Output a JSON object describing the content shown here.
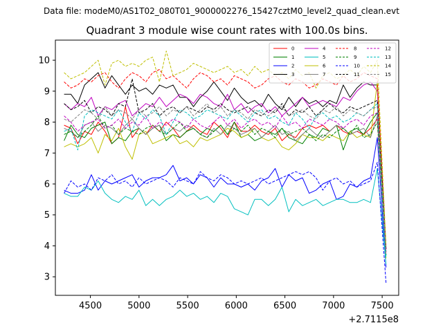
{
  "suptitle": "Data file: modeM0/AS1T02_080T01_9000002276_15427cztM0_level2_quad_clean.evt",
  "chart_data": {
    "type": "line",
    "title": "Quadrant 3 module wise count rates with 100.0s bins.",
    "xlabel": "",
    "ylabel": "",
    "offset_label": "+2.7115e8",
    "xlim": [
      4140,
      7670
    ],
    "ylim": [
      2.4,
      10.65
    ],
    "xticks": [
      4500,
      5000,
      5500,
      6000,
      6500,
      7000,
      7500
    ],
    "yticks": [
      3,
      4,
      5,
      6,
      7,
      8,
      9,
      10
    ],
    "legend_position": "top-right",
    "x": [
      4230,
      4300,
      4370,
      4440,
      4510,
      4580,
      4650,
      4720,
      4790,
      4860,
      4930,
      5000,
      5070,
      5140,
      5210,
      5280,
      5350,
      5420,
      5490,
      5560,
      5630,
      5700,
      5770,
      5840,
      5910,
      5980,
      6050,
      6120,
      6190,
      6260,
      6330,
      6400,
      6470,
      6540,
      6610,
      6680,
      6750,
      6820,
      6890,
      6960,
      7030,
      7100,
      7170,
      7240,
      7310,
      7380,
      7450,
      7540
    ],
    "series": [
      {
        "name": "0",
        "color": "#ff0000",
        "dashed": false,
        "values": [
          7.9,
          7.8,
          7.3,
          7.7,
          7.6,
          8.0,
          7.7,
          7.3,
          7.5,
          8.5,
          7.5,
          7.8,
          7.6,
          7.9,
          7.7,
          8.0,
          7.8,
          7.5,
          7.7,
          7.9,
          7.7,
          7.6,
          8.0,
          7.8,
          7.5,
          8.0,
          7.7,
          7.7,
          7.9,
          7.7,
          7.6,
          7.8,
          7.4,
          7.6,
          7.5,
          7.8,
          7.9,
          7.8,
          7.9,
          7.7,
          7.9,
          7.7,
          7.6,
          7.7,
          7.6,
          7.8,
          8.1,
          3.8
        ]
      },
      {
        "name": "1",
        "color": "#008000",
        "dashed": false,
        "values": [
          7.4,
          7.9,
          7.6,
          7.5,
          7.8,
          7.9,
          8.0,
          7.3,
          7.5,
          7.4,
          7.7,
          7.8,
          7.6,
          7.8,
          7.9,
          7.4,
          7.6,
          7.5,
          7.7,
          7.8,
          7.6,
          7.8,
          7.7,
          7.9,
          7.6,
          8.0,
          7.5,
          7.6,
          7.4,
          7.5,
          7.7,
          7.6,
          7.8,
          7.5,
          7.4,
          7.3,
          7.6,
          7.5,
          7.8,
          7.7,
          7.9,
          7.1,
          7.7,
          7.8,
          7.6,
          8.0,
          8.3,
          3.7
        ]
      },
      {
        "name": "2",
        "color": "#0000ff",
        "dashed": false,
        "values": [
          5.8,
          5.7,
          5.7,
          5.8,
          6.3,
          5.8,
          6.1,
          6.0,
          6.1,
          6.2,
          6.3,
          5.9,
          6.1,
          6.2,
          6.2,
          6.3,
          6.6,
          6.1,
          6.2,
          6.0,
          6.3,
          6.2,
          5.9,
          6.2,
          6.0,
          6.0,
          5.9,
          6.0,
          5.8,
          6.1,
          6.2,
          6.5,
          5.9,
          6.3,
          6.1,
          6.2,
          5.7,
          5.8,
          6.0,
          6.1,
          5.5,
          5.6,
          6.0,
          5.9,
          6.1,
          6.2,
          7.5,
          3.3
        ]
      },
      {
        "name": "3",
        "color": "#000000",
        "dashed": false,
        "values": [
          8.9,
          8.9,
          8.6,
          9.2,
          9.4,
          9.6,
          9.1,
          9.5,
          9.2,
          8.9,
          9.2,
          9.0,
          9.1,
          8.9,
          9.2,
          9.1,
          9.2,
          8.8,
          8.8,
          8.5,
          8.8,
          9.0,
          9.3,
          9.0,
          8.7,
          9.1,
          8.8,
          8.6,
          8.7,
          8.5,
          8.9,
          8.6,
          8.4,
          8.8,
          8.5,
          8.8,
          8.6,
          8.7,
          8.5,
          8.7,
          8.6,
          9.2,
          8.8,
          9.1,
          9.3,
          9.2,
          9.2,
          3.9
        ]
      },
      {
        "name": "4",
        "color": "#bf00bf",
        "dashed": false,
        "values": [
          8.6,
          8.4,
          8.6,
          8.5,
          8.8,
          8.2,
          8.5,
          8.4,
          8.6,
          8.7,
          8.2,
          8.4,
          8.6,
          8.5,
          8.8,
          8.5,
          8.7,
          8.9,
          8.8,
          8.6,
          8.9,
          8.8,
          8.6,
          8.5,
          8.9,
          8.4,
          8.6,
          8.3,
          8.5,
          8.6,
          8.3,
          8.5,
          8.2,
          8.4,
          8.6,
          8.8,
          8.5,
          8.6,
          8.7,
          8.6,
          8.5,
          8.8,
          8.7,
          9.0,
          9.2,
          9.3,
          9.0,
          3.8
        ]
      },
      {
        "name": "5",
        "color": "#00bfbf",
        "dashed": false,
        "values": [
          5.7,
          5.6,
          5.6,
          5.9,
          5.8,
          6.1,
          5.7,
          5.5,
          5.4,
          5.6,
          5.5,
          5.8,
          5.3,
          5.5,
          5.3,
          5.5,
          5.6,
          5.8,
          5.6,
          5.7,
          5.5,
          5.6,
          5.4,
          5.7,
          5.6,
          5.2,
          5.1,
          5.0,
          5.5,
          5.5,
          5.3,
          5.5,
          5.9,
          5.1,
          5.5,
          5.3,
          5.4,
          5.5,
          5.3,
          5.4,
          5.5,
          5.5,
          5.4,
          5.4,
          5.5,
          5.4,
          6.5,
          3.4
        ]
      },
      {
        "name": "6",
        "color": "#bfbf00",
        "dashed": false,
        "values": [
          7.2,
          7.3,
          7.2,
          7.3,
          7.5,
          7.0,
          7.6,
          7.4,
          7.8,
          7.2,
          6.8,
          7.6,
          7.7,
          7.3,
          7.4,
          7.5,
          7.6,
          7.3,
          7.4,
          7.2,
          7.5,
          7.4,
          7.5,
          7.6,
          7.8,
          7.7,
          7.5,
          7.6,
          7.8,
          7.5,
          7.4,
          7.5,
          7.2,
          7.1,
          7.3,
          7.6,
          7.5,
          7.5,
          7.4,
          7.6,
          7.5,
          7.4,
          7.7,
          7.5,
          7.6,
          7.5,
          9.3,
          3.6
        ]
      },
      {
        "name": "7",
        "color": "#808080",
        "dashed": false,
        "values": [
          7.8,
          7.7,
          7.5,
          7.9,
          8.0,
          7.7,
          7.9,
          7.8,
          7.6,
          7.9,
          8.1,
          7.8,
          7.6,
          7.8,
          7.9,
          7.6,
          7.8,
          7.7,
          7.9,
          7.8,
          7.6,
          7.5,
          7.8,
          7.6,
          7.9,
          7.8,
          7.6,
          7.7,
          7.8,
          7.5,
          7.7,
          7.9,
          7.6,
          7.7,
          7.4,
          7.6,
          7.8,
          7.6,
          7.5,
          7.7,
          7.9,
          7.8,
          7.6,
          7.7,
          7.8,
          7.5,
          8.2,
          3.7
        ]
      },
      {
        "name": "8",
        "color": "#ff0000",
        "dashed": true,
        "values": [
          9.3,
          9.1,
          9.2,
          9.4,
          9.3,
          9.5,
          9.6,
          9.3,
          9.1,
          9.4,
          9.6,
          9.5,
          9.3,
          9.6,
          9.7,
          9.4,
          9.5,
          9.3,
          9.1,
          9.4,
          9.6,
          9.5,
          9.3,
          9.4,
          9.2,
          9.5,
          9.4,
          9.3,
          9.1,
          9.2,
          9.4,
          9.5,
          9.3,
          9.2,
          9.4,
          9.3,
          9.1,
          9.2,
          9.4,
          9.3,
          9.2,
          9.5,
          9.3,
          9.4,
          9.6,
          9.5,
          9.4,
          3.9
        ]
      },
      {
        "name": "9",
        "color": "#008000",
        "dashed": true,
        "values": [
          7.6,
          7.7,
          7.5,
          7.7,
          7.9,
          8.2,
          7.8,
          7.9,
          7.6,
          7.8,
          7.7,
          7.6,
          7.8,
          7.9,
          7.7,
          7.6,
          7.8,
          8.0,
          7.7,
          7.8,
          7.6,
          7.5,
          7.7,
          7.9,
          7.6,
          7.8,
          7.7,
          7.9,
          7.6,
          7.8,
          7.7,
          7.5,
          7.8,
          7.6,
          7.7,
          7.8,
          7.6,
          7.4,
          7.6,
          7.5,
          7.7,
          7.8,
          7.6,
          7.9,
          7.5,
          7.6,
          8.0,
          3.7
        ]
      },
      {
        "name": "10",
        "color": "#0000ff",
        "dashed": true,
        "values": [
          5.7,
          6.1,
          5.9,
          6.0,
          5.8,
          6.2,
          6.1,
          6.3,
          6.0,
          6.1,
          5.9,
          6.2,
          6.0,
          6.1,
          6.2,
          6.1,
          5.9,
          6.2,
          6.1,
          6.0,
          6.4,
          6.2,
          6.1,
          6.3,
          6.2,
          6.0,
          6.1,
          6.0,
          6.1,
          6.2,
          6.0,
          6.1,
          6.2,
          6.3,
          6.4,
          6.3,
          6.4,
          6.2,
          5.8,
          6.1,
          6.2,
          6.0,
          6.1,
          5.9,
          6.0,
          6.1,
          6.7,
          2.8
        ]
      },
      {
        "name": "11",
        "color": "#000000",
        "dashed": true,
        "values": [
          8.6,
          8.4,
          8.5,
          8.7,
          8.3,
          8.5,
          8.4,
          8.2,
          8.6,
          8.5,
          9.4,
          8.3,
          8.4,
          8.6,
          8.2,
          8.4,
          8.5,
          8.3,
          8.5,
          8.4,
          8.3,
          8.5,
          8.4,
          8.6,
          8.4,
          8.3,
          8.4,
          8.5,
          8.3,
          8.2,
          8.4,
          8.3,
          8.6,
          8.2,
          8.4,
          8.3,
          8.5,
          8.2,
          8.4,
          8.6,
          8.4,
          8.3,
          8.5,
          8.4,
          8.5,
          8.6,
          8.7,
          3.9
        ]
      },
      {
        "name": "12",
        "color": "#bf00bf",
        "dashed": true,
        "values": [
          8.2,
          8.0,
          7.7,
          7.9,
          8.0,
          8.1,
          7.8,
          7.9,
          8.1,
          7.8,
          8.0,
          7.9,
          8.2,
          7.8,
          8.0,
          7.9,
          8.1,
          8.0,
          7.8,
          8.1,
          7.9,
          7.8,
          8.0,
          8.2,
          7.9,
          8.1,
          7.8,
          8.0,
          8.1,
          7.9,
          8.0,
          7.8,
          8.2,
          7.9,
          8.0,
          7.8,
          8.1,
          8.0,
          7.9,
          8.1,
          8.0,
          7.8,
          8.0,
          8.1,
          7.9,
          8.2,
          8.3,
          3.8
        ]
      },
      {
        "name": "13",
        "color": "#00bfbf",
        "dashed": true,
        "values": [
          7.7,
          7.8,
          7.1,
          8.2,
          8.4,
          8.3,
          8.2,
          8.1,
          8.4,
          8.0,
          7.7,
          8.3,
          8.1,
          8.4,
          8.2,
          7.6,
          8.0,
          8.4,
          8.3,
          8.1,
          8.2,
          8.4,
          8.3,
          8.2,
          8.1,
          8.4,
          8.2,
          8.0,
          8.3,
          8.4,
          8.1,
          8.2,
          8.0,
          7.9,
          8.3,
          8.1,
          7.8,
          8.2,
          8.3,
          8.1,
          8.2,
          8.0,
          8.1,
          8.3,
          8.2,
          8.4,
          8.6,
          3.6
        ]
      },
      {
        "name": "14",
        "color": "#bfbf00",
        "dashed": true,
        "values": [
          9.6,
          9.4,
          9.5,
          9.6,
          9.8,
          10.0,
          9.2,
          9.9,
          10.0,
          9.8,
          9.9,
          9.8,
          10.0,
          10.1,
          9.3,
          10.3,
          9.5,
          9.6,
          9.7,
          9.9,
          9.8,
          9.7,
          9.6,
          9.7,
          9.8,
          9.6,
          9.7,
          9.5,
          9.8,
          9.6,
          9.7,
          9.5,
          9.6,
          9.4,
          9.7,
          9.5,
          9.6,
          9.1,
          9.5,
          9.6,
          9.4,
          9.5,
          9.7,
          9.5,
          9.8,
          9.6,
          10.0,
          4.0
        ]
      },
      {
        "name": "15",
        "color": "#808080",
        "dashed": true,
        "values": [
          8.1,
          8.0,
          8.2,
          8.4,
          8.3,
          8.1,
          8.5,
          8.2,
          8.4,
          8.3,
          8.1,
          8.4,
          8.2,
          8.3,
          8.5,
          8.2,
          8.4,
          8.3,
          8.5,
          8.2,
          8.4,
          8.6,
          8.3,
          8.5,
          8.2,
          8.4,
          8.3,
          8.1,
          8.4,
          8.3,
          8.2,
          8.4,
          8.5,
          8.2,
          8.3,
          8.4,
          8.2,
          8.1,
          8.4,
          8.3,
          8.5,
          8.2,
          8.4,
          8.3,
          8.2,
          8.4,
          8.5,
          3.7
        ]
      }
    ]
  }
}
